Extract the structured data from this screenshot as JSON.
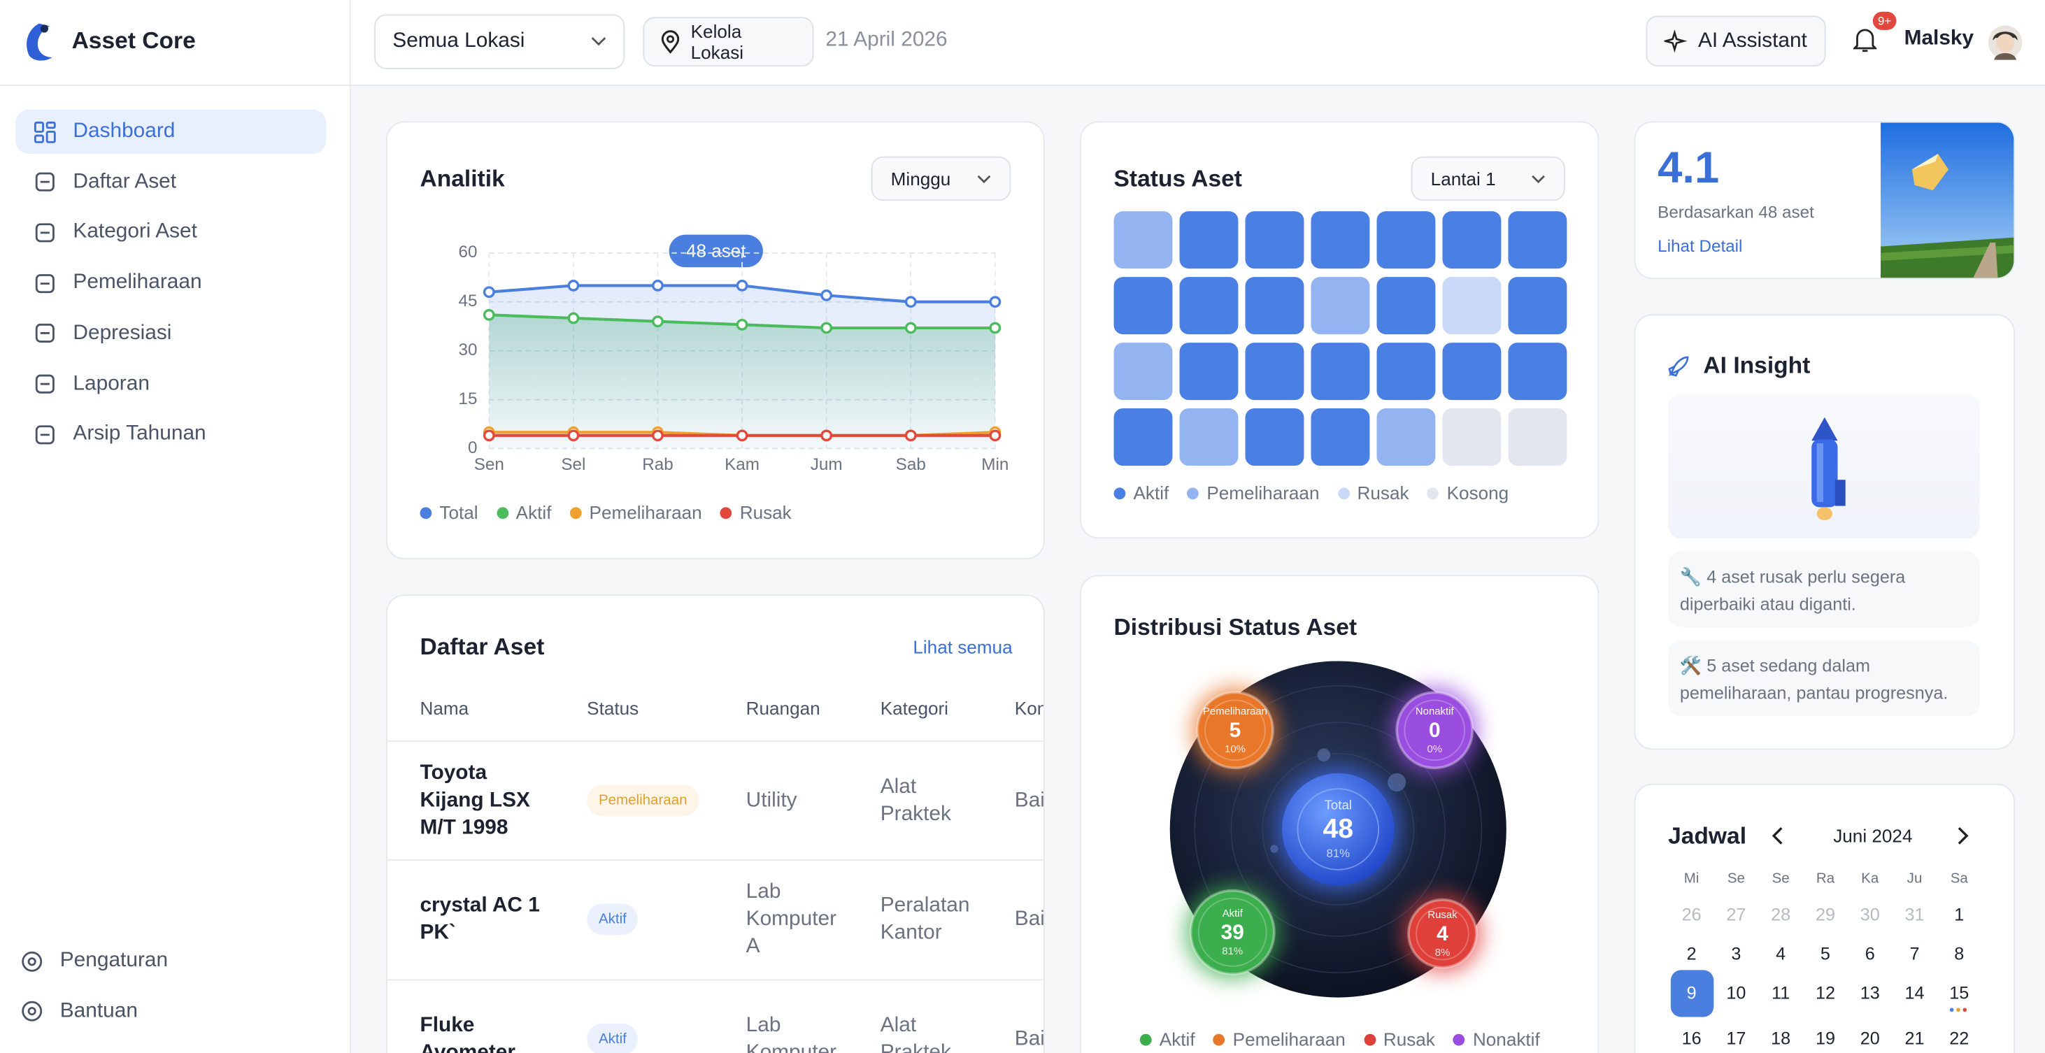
{
  "sidebar": {
    "brand": "Asset Core",
    "nav": [
      "Dashboard",
      "Daftar Aset",
      "Kategori Aset",
      "Pemeliharaan",
      "Depresiasi",
      "Laporan",
      "Arsip Tahunan"
    ],
    "footer": [
      "Pengaturan",
      "Bantuan"
    ]
  },
  "topbar": {
    "location": "Semua Lokasi",
    "manage_location": "Kelola Lokasi",
    "date": "21 April 2026",
    "ai_button": "AI Assistant",
    "notification_badge": "9+",
    "user": "Malsky"
  },
  "analytics": {
    "title": "Analitik",
    "period": "Minggu",
    "tooltip": "48 aset",
    "chart": {
      "type": "line",
      "categories": [
        "Sen",
        "Sel",
        "Rab",
        "Kam",
        "Jum",
        "Sab",
        "Min"
      ],
      "ylim": [
        0,
        60
      ],
      "yticks": [
        0,
        15,
        30,
        45,
        60
      ],
      "grid": true,
      "series": [
        {
          "name": "Total",
          "color": "#4a7fe0",
          "values": [
            48,
            50,
            50,
            50,
            47,
            45,
            45
          ]
        },
        {
          "name": "Aktif",
          "color": "#4cbb5e",
          "values": [
            41,
            40,
            39,
            38,
            37,
            37,
            37
          ]
        },
        {
          "name": "Pemeliharaan",
          "color": "#f0a030",
          "values": [
            5,
            5,
            5,
            4,
            4,
            4,
            5
          ]
        },
        {
          "name": "Rusak",
          "color": "#e2483d",
          "values": [
            4,
            4,
            4,
            4,
            4,
            4,
            4
          ]
        }
      ]
    }
  },
  "status_grid": {
    "title": "Status Aset",
    "floor": "Lantai 1",
    "legend": [
      {
        "name": "Aktif",
        "color": "#4a7fe4"
      },
      {
        "name": "Pemeliharaan",
        "color": "#94b4f1"
      },
      {
        "name": "Rusak",
        "color": "#cbd9f8"
      },
      {
        "name": "Kosong",
        "color": "#e2e6ee"
      }
    ],
    "cells": [
      [
        1,
        0,
        0,
        0,
        0,
        0,
        0
      ],
      [
        0,
        0,
        0,
        1,
        0,
        2,
        0
      ],
      [
        1,
        0,
        0,
        0,
        0,
        0,
        0
      ],
      [
        0,
        1,
        0,
        0,
        1,
        3,
        3
      ]
    ]
  },
  "asset_list": {
    "title": "Daftar Aset",
    "link": "Lihat semua",
    "columns": [
      "Nama",
      "Status",
      "Ruangan",
      "Kategori",
      "Kondisi"
    ],
    "badge_colors": {
      "Pemeliharaan": "#e0a030",
      "Aktif": "#4a7fe0"
    },
    "rows": [
      [
        "Toyota Kijang LSX M/T 1998",
        "Pemeliharaan",
        "Utility",
        "Alat Praktek",
        "Baik"
      ],
      [
        "crystal AC 1 PK`",
        "Aktif",
        "Lab Komputer A",
        "Peralatan Kantor",
        "Baik"
      ],
      [
        "Fluke Avometer",
        "Aktif",
        "Lab Komputer",
        "Alat Praktek",
        "Baik"
      ]
    ]
  },
  "distribution": {
    "title": "Distribusi Status Aset",
    "center": {
      "label": "Total",
      "value": 48,
      "pct": "81%"
    },
    "segments": [
      {
        "name": "Aktif",
        "value": 39,
        "pct": "81%",
        "color": "#3cae4e"
      },
      {
        "name": "Pemeliharaan",
        "value": 5,
        "pct": "10%",
        "color": "#e8772a"
      },
      {
        "name": "Rusak",
        "value": 4,
        "pct": "8%",
        "color": "#e0403a"
      },
      {
        "name": "Nonaktif",
        "value": 0,
        "pct": "0%",
        "color": "#9a4ee0"
      }
    ]
  },
  "rating": {
    "value": "4.1",
    "caption": "Berdasarkan 48 aset",
    "link": "Lihat Detail"
  },
  "ai_insight": {
    "title": "AI Insight",
    "items": [
      "🔧 4 aset rusak perlu segera diperbaiki atau diganti.",
      "🛠️ 5 aset sedang dalam pemeliharaan, pantau progresnya."
    ]
  },
  "schedule": {
    "title": "Jadwal",
    "month": "Juni 2024",
    "weekdays": [
      "Mi",
      "Se",
      "Se",
      "Ra",
      "Ka",
      "Ju",
      "Sa"
    ],
    "prev_month_days": [
      26,
      27,
      28,
      29,
      30,
      31
    ],
    "days": [
      1,
      2,
      3,
      4,
      5,
      6,
      7,
      8,
      9,
      10,
      11,
      12,
      13,
      14,
      15,
      16,
      17,
      18,
      19,
      20,
      21,
      22
    ],
    "selected": 9
  }
}
